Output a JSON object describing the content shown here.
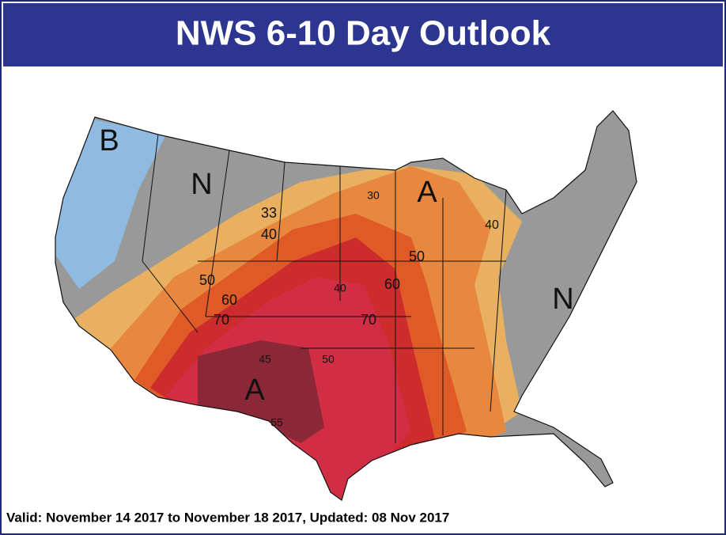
{
  "header": {
    "title": "NWS 6-10 Day Outlook"
  },
  "footer": {
    "text": "Valid: November 14 2017 to November 18 2017, Updated: 08 Nov 2017"
  },
  "map": {
    "labels": [
      "B",
      "N",
      "A",
      "N",
      "A",
      "33",
      "40",
      "30",
      "40",
      "50",
      "50",
      "60",
      "70",
      "40",
      "60",
      "70",
      "45",
      "50",
      "55"
    ]
  }
}
